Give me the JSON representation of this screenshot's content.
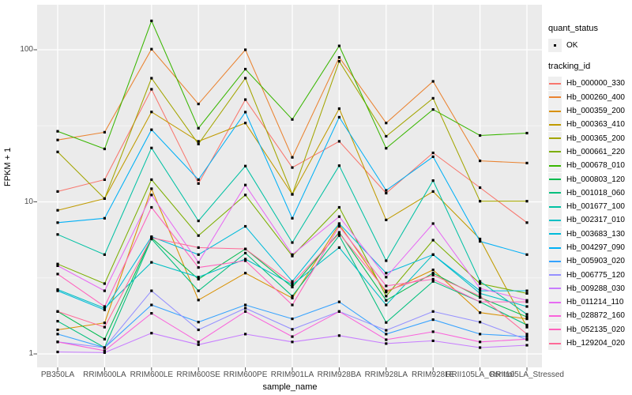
{
  "chart_data": {
    "type": "line",
    "title": "",
    "xlabel": "sample_name",
    "ylabel": "FPKM + 1",
    "y_scale": "log10",
    "ylim": [
      1,
      160
    ],
    "y_ticks": [
      "1",
      "10",
      "100"
    ],
    "grid": "on",
    "legend_position": "right",
    "x_categories": [
      "PB350LA",
      "RRIM600LA",
      "RRIM600LE",
      "RRIM600SE",
      "RRIM600PE",
      "RRIM901LA",
      "RRIM928BA",
      "RRIM928LA",
      "RRIM928LE",
      "RRII105LA_Control",
      "RRII105LA_Stressed"
    ],
    "series": [
      {
        "tracking_id": "Hb_000000_330",
        "color": "#F8766D",
        "values": [
          11.7,
          14.0,
          55,
          13.2,
          47,
          16.8,
          25,
          11.4,
          21,
          12.4,
          7.3
        ]
      },
      {
        "tracking_id": "Hb_000260_400",
        "color": "#EA8331",
        "values": [
          25.5,
          28.7,
          101,
          44,
          100,
          19.6,
          89,
          33,
          62,
          18.6,
          18.0
        ]
      },
      {
        "tracking_id": "Hb_000359_200",
        "color": "#D89000",
        "values": [
          1.44,
          1.6,
          12.2,
          2.26,
          3.4,
          2.33,
          7.1,
          2.55,
          3.57,
          1.87,
          1.7
        ]
      },
      {
        "tracking_id": "Hb_000363_410",
        "color": "#C09B00",
        "values": [
          8.8,
          10.5,
          39,
          25,
          33,
          11.2,
          41,
          7.6,
          11.7,
          5.7,
          1.5
        ]
      },
      {
        "tracking_id": "Hb_000365_200",
        "color": "#A3A500",
        "values": [
          21.3,
          10.5,
          65,
          24,
          65,
          11.2,
          84,
          27,
          48,
          10.1,
          10.1
        ]
      },
      {
        "tracking_id": "Hb_000661_220",
        "color": "#7CAE00",
        "values": [
          3.9,
          2.9,
          14.0,
          6.0,
          11.1,
          4.4,
          9.2,
          2.4,
          5.6,
          2.9,
          2.5
        ]
      },
      {
        "tracking_id": "Hb_000678_010",
        "color": "#39B600",
        "values": [
          29.1,
          22.3,
          155,
          30.5,
          74.6,
          34.8,
          106,
          22.5,
          40.5,
          27.3,
          28.3
        ]
      },
      {
        "tracking_id": "Hb_000803_120",
        "color": "#00BB4E",
        "values": [
          1.9,
          1.25,
          5.8,
          3.1,
          4.9,
          2.75,
          6.3,
          2.25,
          3.4,
          2.35,
          1.75
        ]
      },
      {
        "tracking_id": "Hb_001018_060",
        "color": "#00BF7D",
        "values": [
          1.64,
          1.1,
          5.7,
          2.6,
          4.6,
          2.4,
          6.0,
          1.61,
          3.0,
          2.2,
          1.55
        ]
      },
      {
        "tracking_id": "Hb_001677_100",
        "color": "#00C1A3",
        "values": [
          6.1,
          4.5,
          22.6,
          7.5,
          17.2,
          5.4,
          17.3,
          4.1,
          13.8,
          3.0,
          1.82
        ]
      },
      {
        "tracking_id": "Hb_002317_010",
        "color": "#00BFC4",
        "values": [
          2.65,
          2.0,
          4.0,
          3.2,
          4.2,
          2.85,
          5.0,
          2.1,
          4.5,
          2.5,
          2.05
        ]
      },
      {
        "tracking_id": "Hb_003683_130",
        "color": "#00BBDA",
        "values": [
          2.6,
          1.95,
          5.9,
          4.5,
          6.9,
          3.0,
          7.2,
          3.4,
          4.5,
          2.6,
          2.6
        ]
      },
      {
        "tracking_id": "Hb_004297_090",
        "color": "#00B0F6",
        "values": [
          7.3,
          7.8,
          29.8,
          14.0,
          38.9,
          7.8,
          36,
          11.9,
          19.8,
          5.5,
          4.5
        ]
      },
      {
        "tracking_id": "Hb_005903_020",
        "color": "#35A2FF",
        "values": [
          1.35,
          1.1,
          2.1,
          1.62,
          2.1,
          1.7,
          2.2,
          1.35,
          1.68,
          1.35,
          1.3
        ]
      },
      {
        "tracking_id": "Hb_006775_120",
        "color": "#9590FF",
        "values": [
          1.2,
          1.1,
          2.6,
          1.44,
          2.0,
          1.45,
          1.9,
          1.43,
          1.9,
          1.62,
          1.24
        ]
      },
      {
        "tracking_id": "Hb_009288_030",
        "color": "#C77CFF",
        "values": [
          1.03,
          1.02,
          1.37,
          1.15,
          1.35,
          1.2,
          1.32,
          1.17,
          1.22,
          1.1,
          1.14
        ]
      },
      {
        "tracking_id": "Hb_011214_110",
        "color": "#E76BF3",
        "values": [
          3.8,
          2.6,
          11.1,
          4.0,
          12.9,
          4.5,
          8.0,
          3.2,
          7.2,
          2.7,
          2.25
        ]
      },
      {
        "tracking_id": "Hb_028872_160",
        "color": "#FA62DB",
        "values": [
          1.2,
          1.05,
          1.85,
          1.2,
          1.9,
          1.3,
          1.9,
          1.24,
          1.4,
          1.2,
          1.25
        ]
      },
      {
        "tracking_id": "Hb_052135_020",
        "color": "#FF62BC",
        "values": [
          3.35,
          2.05,
          9.2,
          3.7,
          4.1,
          2.1,
          6.9,
          2.8,
          3.1,
          2.2,
          2.2
        ]
      },
      {
        "tracking_id": "Hb_129204_020",
        "color": "#FF6A98",
        "values": [
          1.9,
          1.5,
          5.8,
          5.0,
          4.9,
          2.9,
          6.2,
          2.6,
          3.3,
          2.4,
          1.35
        ]
      }
    ],
    "legend": {
      "quant_status_title": "quant_status",
      "ok_label": "OK",
      "tracking_id_title": "tracking_id"
    }
  },
  "colors": {
    "panel_background": "#EBEBEB",
    "grid_major": "#FFFFFF",
    "grid_minor": "rgba(255,255,255,0.55)",
    "point": "#000000",
    "axis_text": "#4d4d4d",
    "legend_key_background": "#efefef"
  }
}
